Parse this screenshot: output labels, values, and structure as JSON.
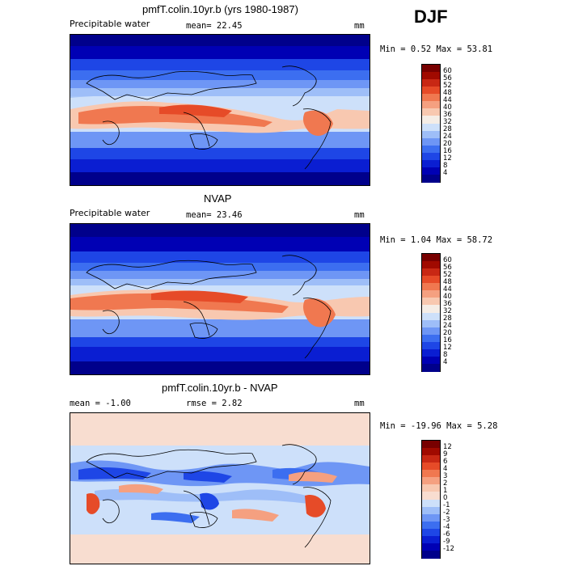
{
  "season": "DJF",
  "panels": [
    {
      "title": "pmfT.colin.10yr.b (yrs 1980-1987)",
      "left_label": "Precipitable water",
      "center_label": "mean=  22.45",
      "units": "mm",
      "stats": "Min =    0.52 Max =  53.81",
      "colorbar_ticks": [
        "60",
        "56",
        "52",
        "48",
        "44",
        "40",
        "36",
        "32",
        "28",
        "24",
        "20",
        "16",
        "12",
        "8",
        "4"
      ]
    },
    {
      "title": "NVAP",
      "left_label": "Precipitable water",
      "center_label": "mean=  23.46",
      "units": "mm",
      "stats": "Min =    1.04 Max =  58.72",
      "colorbar_ticks": [
        "60",
        "56",
        "52",
        "48",
        "44",
        "40",
        "36",
        "32",
        "28",
        "24",
        "20",
        "16",
        "12",
        "8",
        "4"
      ]
    },
    {
      "title": "pmfT.colin.10yr.b - NVAP",
      "left_label": "mean =  -1.00",
      "center_label": "rmse =   2.82",
      "units": "mm",
      "stats": "Min = -19.96 Max =   5.28",
      "colorbar_ticks": [
        "12",
        "9",
        "6",
        "4",
        "3",
        "2",
        "1",
        "0",
        "-1",
        "-2",
        "-3",
        "-4",
        "-6",
        "-9",
        "-12"
      ]
    }
  ],
  "colors": {
    "abs_scale": [
      "#00008b",
      "#0000b4",
      "#0a1ed2",
      "#1e46e6",
      "#3c6ef0",
      "#6e96f5",
      "#9ebef8",
      "#cde0fa",
      "#f5ede6",
      "#f8c8b0",
      "#f5a080",
      "#f07850",
      "#e64b28",
      "#c82814",
      "#a00a00",
      "#780000"
    ],
    "diff_scale": [
      "#00008b",
      "#0000b4",
      "#0a1ed2",
      "#1e46e6",
      "#3c6ef0",
      "#6e96f5",
      "#9ebef8",
      "#cde0fa",
      "#f8ddd0",
      "#f8c8b0",
      "#f5a080",
      "#f07850",
      "#e64b28",
      "#c82814",
      "#a00a00",
      "#780000"
    ]
  }
}
